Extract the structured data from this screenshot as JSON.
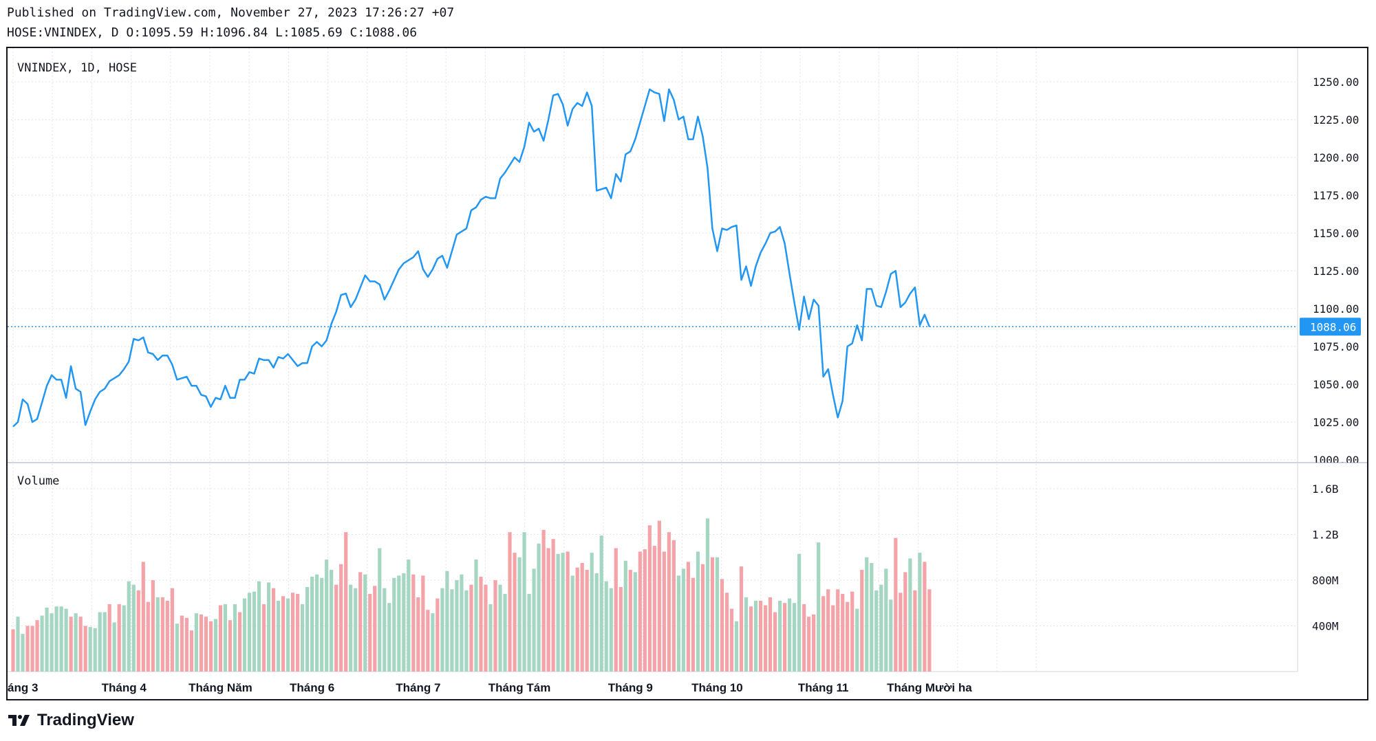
{
  "header": {
    "published": "Published on TradingView.com, November 27, 2023 17:26:27 +07",
    "quote": "HOSE:VNINDEX, D O:1095.59 H:1096.84 L:1085.69 C:1088.06"
  },
  "brand": {
    "name": "TradingView",
    "icon": "tradingview-logo-icon"
  },
  "colors": {
    "line": "#2196f3",
    "up_volume": "#a5d6c1",
    "down_volume": "#f4a3a8",
    "grid": "#e0e3eb",
    "last_price_bg": "#2196f3",
    "text": "#131722"
  },
  "chart_data": [
    {
      "type": "line",
      "title": "VNINDEX, 1D, HOSE",
      "xlabel": "",
      "ylabel": "",
      "ylim": [
        1000,
        1260
      ],
      "y_ticks": [
        1000,
        1025,
        1050,
        1075,
        1100,
        1125,
        1150,
        1175,
        1200,
        1225,
        1250
      ],
      "y_tick_labels": [
        "1000.00",
        "1025.00",
        "1050.00",
        "1075.00",
        "1100.00",
        "1125.00",
        "1150.00",
        "1175.00",
        "1200.00",
        "1225.00",
        "1250.00"
      ],
      "last_price": 1088.06,
      "last_price_label": "1088.06",
      "x_labels": [
        {
          "label": "áng 3",
          "index": 0
        },
        {
          "label": "Tháng 4",
          "index": 23
        },
        {
          "label": "Tháng Năm",
          "index": 43
        },
        {
          "label": "Tháng 6",
          "index": 62
        },
        {
          "label": "Tháng 7",
          "index": 84
        },
        {
          "label": "Tháng Tám",
          "index": 105
        },
        {
          "label": "Tháng 9",
          "index": 128
        },
        {
          "label": "Tháng 10",
          "index": 146
        },
        {
          "label": "Tháng 11",
          "index": 168
        },
        {
          "label": "Tháng Mười ha",
          "index": 190
        }
      ],
      "series": [
        {
          "name": "VNINDEX close",
          "values": [
            1022,
            1025,
            1040,
            1037,
            1025,
            1027,
            1038,
            1049,
            1056,
            1053,
            1053,
            1041,
            1062,
            1047,
            1045,
            1023,
            1032,
            1040,
            1045,
            1047,
            1052,
            1054,
            1056,
            1060,
            1065,
            1080,
            1079,
            1081,
            1071,
            1070,
            1066,
            1069,
            1069,
            1063,
            1053,
            1054,
            1055,
            1049,
            1049,
            1043,
            1042,
            1035,
            1041,
            1040,
            1049,
            1041,
            1041,
            1053,
            1053,
            1058,
            1057,
            1067,
            1066,
            1066,
            1061,
            1068,
            1067,
            1070,
            1066,
            1062,
            1064,
            1064,
            1075,
            1078,
            1075,
            1079,
            1090,
            1098,
            1109,
            1110,
            1101,
            1106,
            1114,
            1122,
            1118,
            1118,
            1116,
            1106,
            1112,
            1119,
            1126,
            1130,
            1132,
            1134,
            1138,
            1126,
            1121,
            1126,
            1133,
            1135,
            1127,
            1138,
            1149,
            1151,
            1153,
            1165,
            1167,
            1172,
            1174,
            1173,
            1173,
            1186,
            1190,
            1195,
            1200,
            1197,
            1207,
            1223,
            1217,
            1219,
            1211,
            1225,
            1241,
            1242,
            1235,
            1221,
            1232,
            1236,
            1234,
            1243,
            1234,
            1178,
            1179,
            1180,
            1173,
            1189,
            1184,
            1202,
            1204,
            1212,
            1223,
            1234,
            1245,
            1243,
            1242,
            1224,
            1245,
            1238,
            1225,
            1227,
            1212,
            1212,
            1227,
            1214,
            1193,
            1153,
            1138,
            1153,
            1152,
            1154,
            1155,
            1119,
            1128,
            1115,
            1128,
            1137,
            1143,
            1150,
            1151,
            1154,
            1143,
            1123,
            1104,
            1086,
            1108,
            1093,
            1106,
            1102,
            1055,
            1060,
            1043,
            1028,
            1039,
            1075,
            1077,
            1089,
            1079,
            1113,
            1113,
            1102,
            1101,
            1111,
            1123,
            1125,
            1101,
            1104,
            1110,
            1114,
            1089,
            1096,
            1088.06
          ]
        }
      ]
    },
    {
      "type": "bar",
      "title": "Volume",
      "xlabel": "",
      "ylabel": "",
      "ylim": [
        0,
        1750000000
      ],
      "y_ticks": [
        400000000,
        800000000,
        1200000000,
        1600000000
      ],
      "y_tick_labels": [
        "400M",
        "800M",
        "1.2B",
        "1.6B"
      ],
      "series": [
        {
          "name": "Volume",
          "values": [
            370000000,
            480000000,
            330000000,
            400000000,
            400000000,
            450000000,
            490000000,
            560000000,
            510000000,
            570000000,
            570000000,
            550000000,
            480000000,
            510000000,
            480000000,
            400000000,
            390000000,
            380000000,
            520000000,
            520000000,
            590000000,
            430000000,
            590000000,
            580000000,
            790000000,
            760000000,
            710000000,
            960000000,
            610000000,
            800000000,
            650000000,
            650000000,
            620000000,
            730000000,
            420000000,
            490000000,
            470000000,
            360000000,
            510000000,
            500000000,
            480000000,
            440000000,
            460000000,
            580000000,
            590000000,
            450000000,
            590000000,
            520000000,
            640000000,
            690000000,
            700000000,
            790000000,
            590000000,
            780000000,
            730000000,
            620000000,
            660000000,
            640000000,
            690000000,
            680000000,
            590000000,
            740000000,
            830000000,
            850000000,
            820000000,
            980000000,
            890000000,
            760000000,
            940000000,
            1220000000,
            760000000,
            730000000,
            870000000,
            850000000,
            680000000,
            750000000,
            1080000000,
            730000000,
            600000000,
            820000000,
            840000000,
            860000000,
            980000000,
            850000000,
            650000000,
            840000000,
            540000000,
            510000000,
            640000000,
            730000000,
            880000000,
            720000000,
            800000000,
            850000000,
            710000000,
            760000000,
            980000000,
            830000000,
            760000000,
            590000000,
            800000000,
            760000000,
            680000000,
            1220000000,
            1040000000,
            1000000000,
            1220000000,
            680000000,
            900000000,
            1120000000,
            1240000000,
            1080000000,
            1160000000,
            1030000000,
            1040000000,
            1050000000,
            840000000,
            910000000,
            950000000,
            890000000,
            1040000000,
            860000000,
            1190000000,
            790000000,
            730000000,
            1080000000,
            740000000,
            970000000,
            890000000,
            870000000,
            1050000000,
            1070000000,
            1280000000,
            1100000000,
            1320000000,
            1050000000,
            1220000000,
            1150000000,
            840000000,
            900000000,
            960000000,
            820000000,
            1050000000,
            940000000,
            1340000000,
            1000000000,
            1000000000,
            810000000,
            690000000,
            550000000,
            440000000,
            920000000,
            650000000,
            570000000,
            620000000,
            620000000,
            580000000,
            650000000,
            520000000,
            620000000,
            600000000,
            640000000,
            600000000,
            1030000000,
            590000000,
            480000000,
            500000000,
            1130000000,
            660000000,
            720000000,
            580000000,
            720000000,
            680000000,
            610000000,
            700000000,
            550000000,
            890000000,
            1000000000,
            950000000,
            710000000,
            760000000,
            900000000,
            630000000,
            1170000000,
            690000000,
            870000000,
            990000000,
            710000000,
            1040000000,
            960000000,
            720000000
          ]
        }
      ],
      "volume_colors": "rggrrrggggggrgrrggggrgrgggrrrrgrrrgrrrgrrrgrgrgrggggrgrgrgrrgggggggrrrggrgrrgggggggrrrrgrggggggrgrrgrggrrgggggrrrggrgrrrgggggrrgrgrrrrrrrrggrrgrgrgrrrgrgrgrrrrgrgggrrrgrrrrrrrgrggggggrrrgrgrrggrrrgrgrgrggrrgr"
    }
  ]
}
